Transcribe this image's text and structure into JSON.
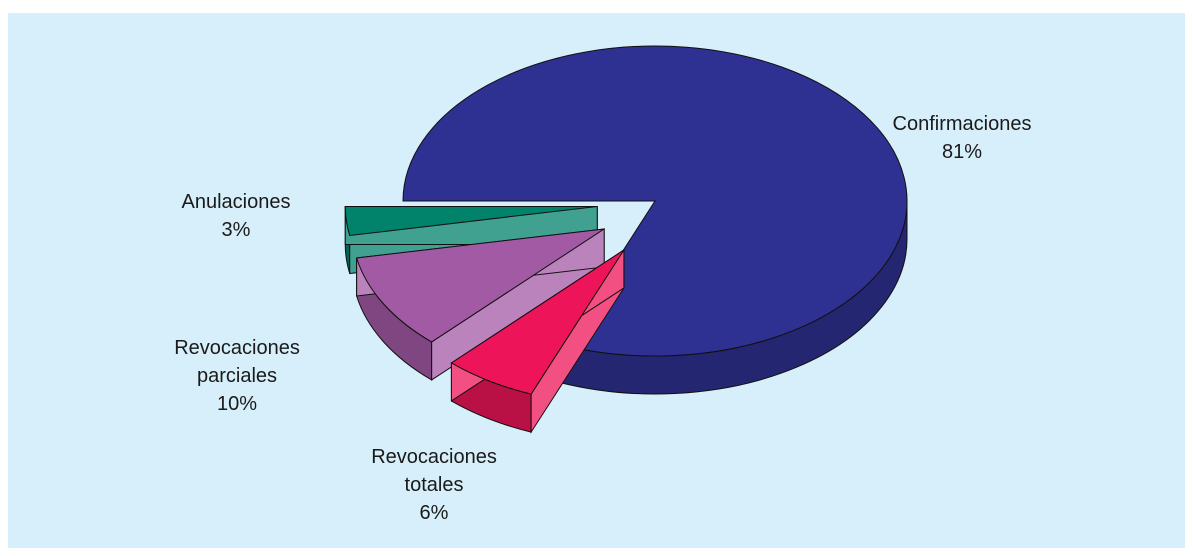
{
  "chart_data": {
    "type": "pie",
    "style": "3d-exploded",
    "title": "",
    "series": [
      {
        "label": "Confirmaciones",
        "value": 81,
        "value_label": "81%",
        "color": "#2e3192",
        "exploded": false
      },
      {
        "label": "Revocaciones totales",
        "value": 6,
        "value_label": "6%",
        "color": "#ed1459",
        "exploded": true
      },
      {
        "label": "Revocaciones parciales",
        "value": 10,
        "value_label": "10%",
        "color": "#a35aa5",
        "exploded": true
      },
      {
        "label": "Anulaciones",
        "value": 3,
        "value_label": "3%",
        "color": "#00826b",
        "exploded": true
      }
    ],
    "labels": {
      "confirmaciones": [
        "Confirmaciones",
        "81%"
      ],
      "revocaciones_totales": [
        "Revocaciones",
        "totales",
        "6%"
      ],
      "revocaciones_parciales": [
        "Revocaciones",
        "parciales",
        "10%"
      ],
      "anulaciones": [
        "Anulaciones",
        "3%"
      ]
    },
    "background": "#d6effa"
  }
}
